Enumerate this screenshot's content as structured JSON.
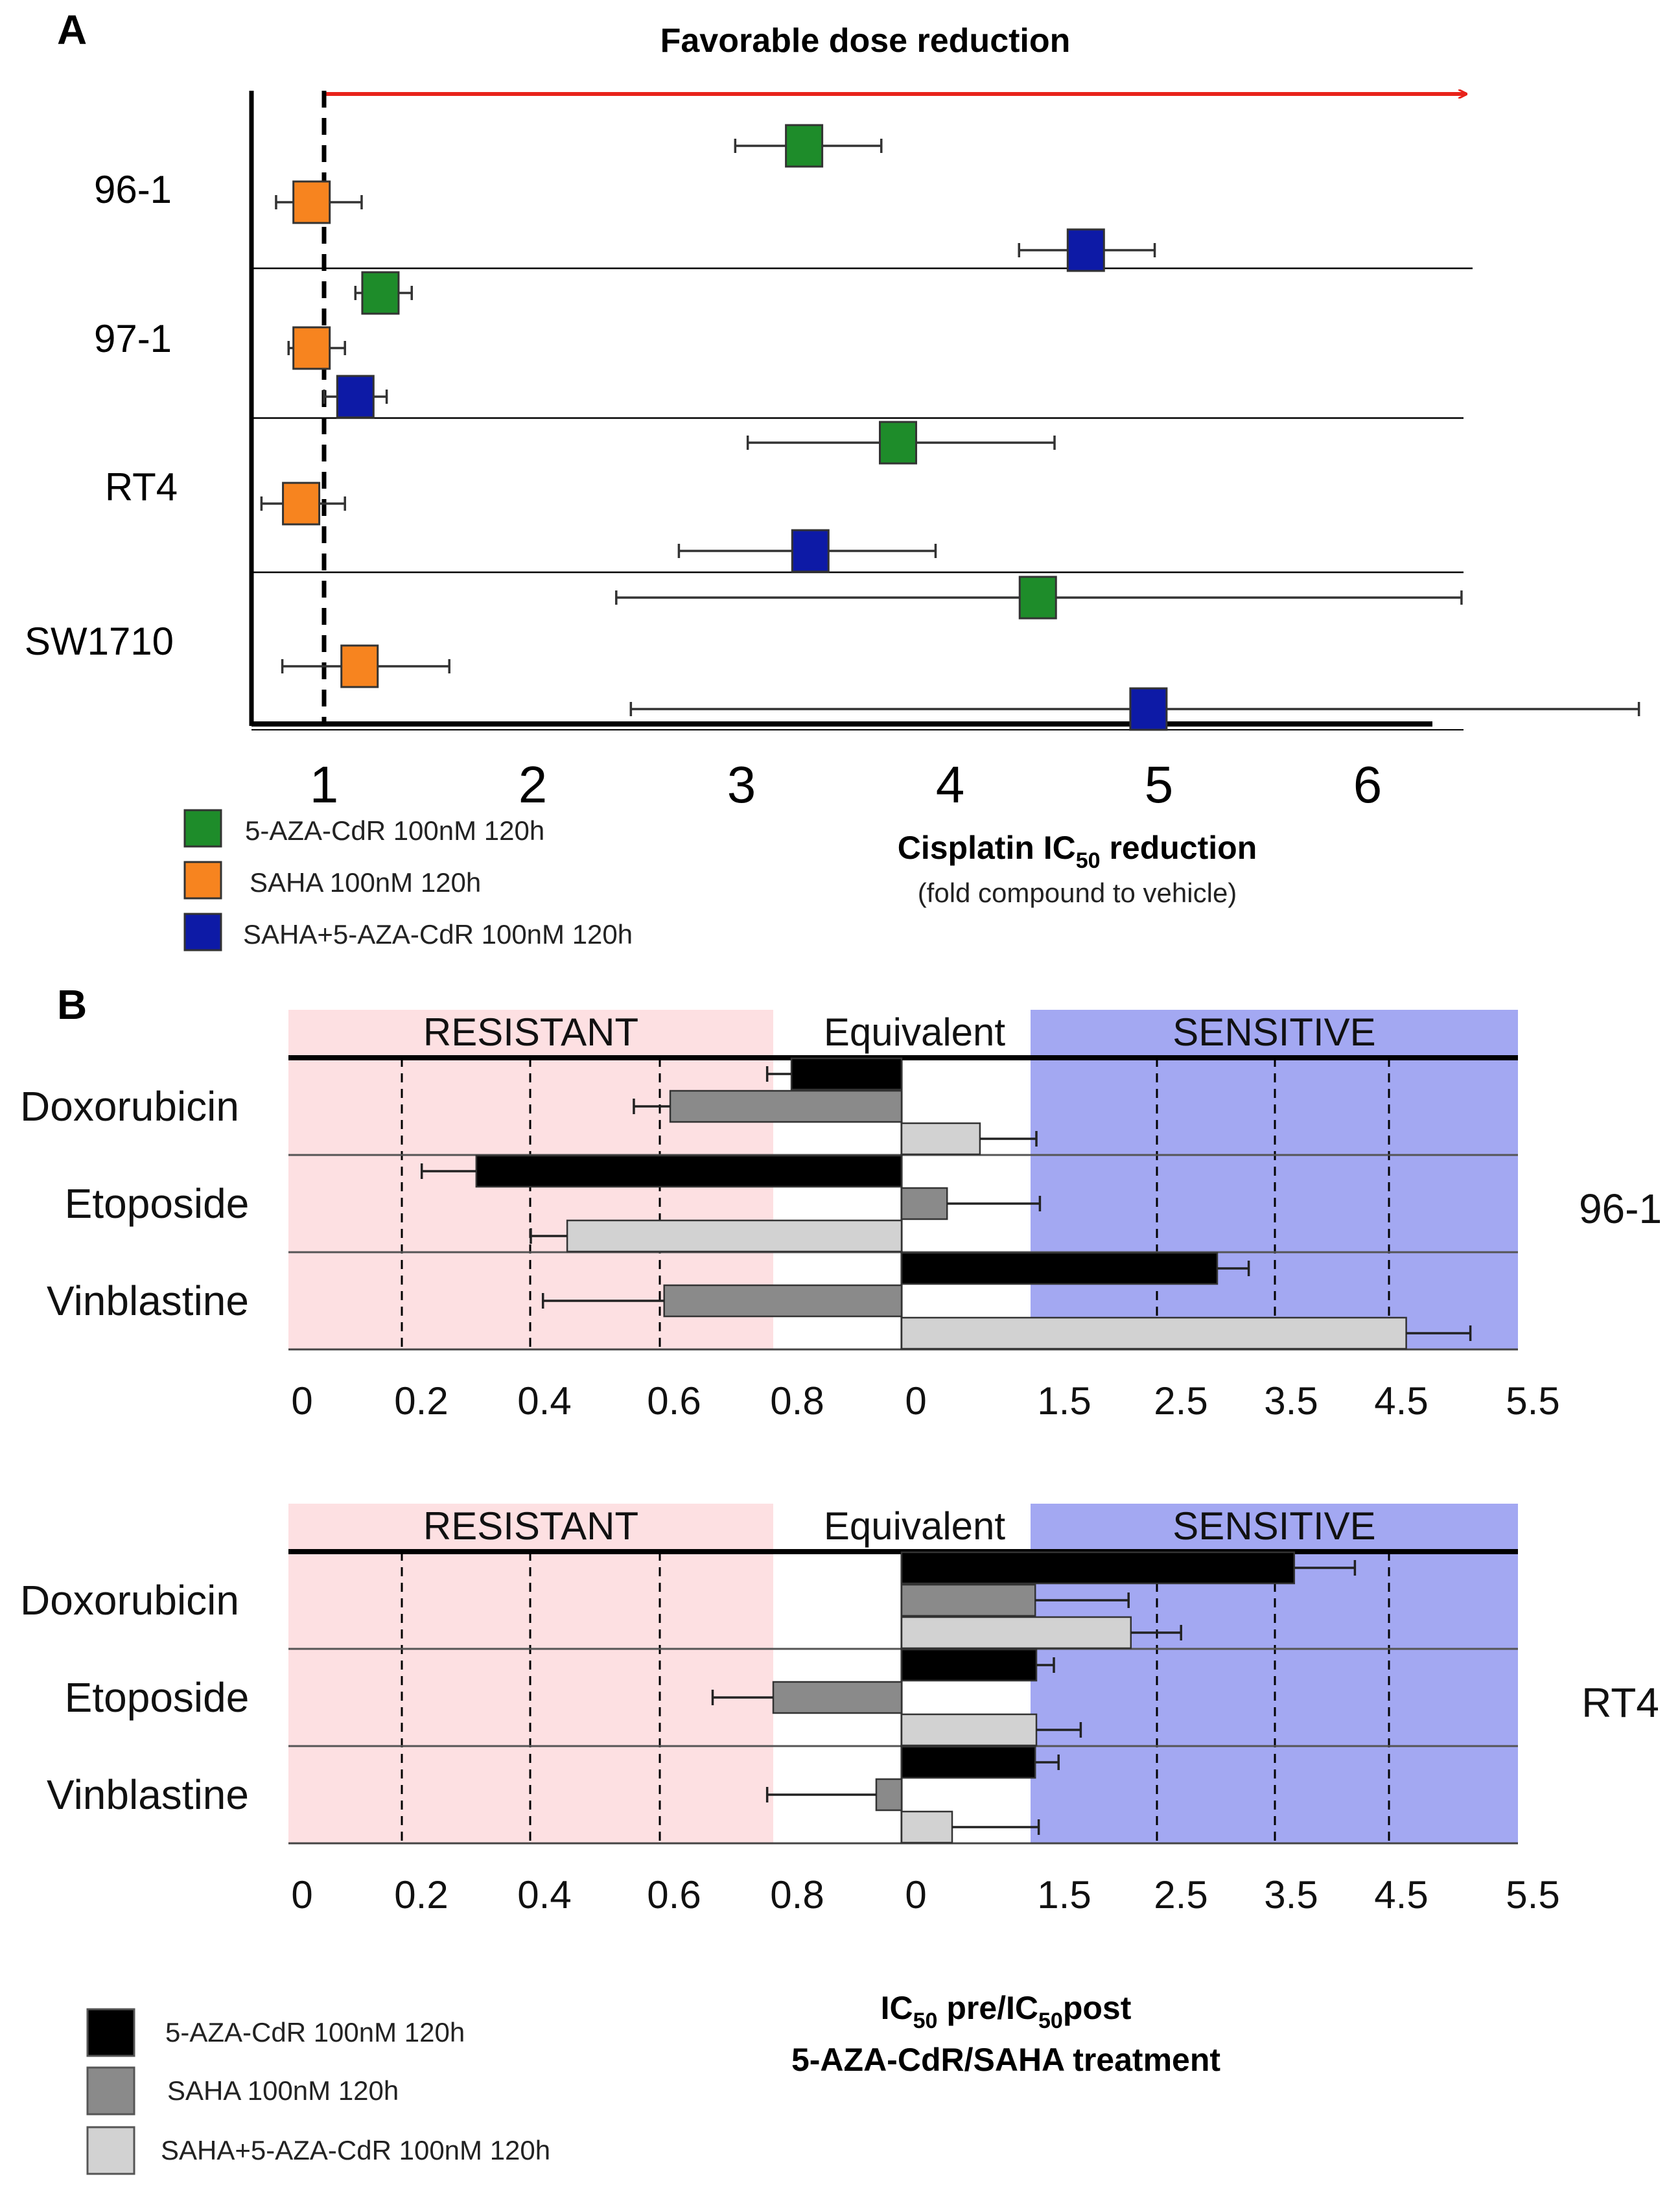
{
  "colors": {
    "green": "#1e8c2a",
    "orange": "#f7841f",
    "blue": "#0d1aa6",
    "black": "#000000",
    "dark_gray": "#8a8a8a",
    "light_gray": "#d2d2d2",
    "resistant_bg": "#fde0e2",
    "sensitive_bg": "#a3a8f2",
    "arrow": "#e8231b"
  },
  "chart_data": [
    {
      "panel": "A",
      "type": "scatter",
      "subtype": "forest-plot",
      "title": "Favorable dose reduction",
      "xlabel": "Cisplatin IC50 reduction",
      "xlabel_sub": "(fold compound to vehicle)",
      "xlim": [
        0.7,
        6.5
      ],
      "xticks": [
        1,
        2,
        3,
        4,
        5,
        6
      ],
      "reference_line": 1,
      "categories": [
        "96-1",
        "97-1",
        "RT4",
        "SW1710"
      ],
      "series": [
        {
          "name": "5-AZA-CdR 100nM 120h",
          "color": "green",
          "values": [
            3.3,
            1.27,
            3.75,
            4.42
          ],
          "ci_low": [
            2.97,
            1.15,
            3.03,
            2.4
          ],
          "ci_high": [
            3.67,
            1.42,
            4.5,
            6.45
          ]
        },
        {
          "name": "SAHA 100nM 120h",
          "color": "orange",
          "values": [
            0.94,
            0.94,
            0.89,
            1.17
          ],
          "ci_low": [
            0.77,
            0.83,
            0.7,
            0.8
          ],
          "ci_high": [
            1.18,
            1.1,
            1.1,
            1.6
          ]
        },
        {
          "name": "SAHA+5-AZA-CdR 100nM 120h",
          "color": "blue",
          "values": [
            4.65,
            1.15,
            3.33,
            4.95
          ],
          "ci_low": [
            4.33,
            1.0,
            2.7,
            2.47
          ],
          "ci_high": [
            4.98,
            1.3,
            3.93,
            7.3
          ]
        }
      ]
    },
    {
      "panel": "B",
      "type": "bar",
      "orientation": "horizontal",
      "cell_line": "96-1",
      "zone_labels": [
        "RESISTANT",
        "Equivalent",
        "SENSITIVE"
      ],
      "left_ticks": [
        "0",
        "0.2",
        "0.4",
        "0.6",
        "0.8"
      ],
      "right_ticks": [
        "0",
        "1.5",
        "2.5",
        "3.5",
        "4.5",
        "5.5"
      ],
      "categories": [
        "Doxorubicin",
        "Etoposide",
        "Vinblastine"
      ],
      "series": [
        {
          "name": "5-AZA-CdR 100nM 120h",
          "color": "black",
          "values": [
            0.83,
            0.31,
            3.1
          ],
          "err": [
            0.04,
            0.09,
            0.27
          ]
        },
        {
          "name": "SAHA 100nM 120h",
          "color": "dark_gray",
          "values": [
            0.63,
            1.18,
            0.62
          ],
          "err": [
            0.06,
            0.4,
            0.2
          ]
        },
        {
          "name": "SAHA+5-AZA-CdR 100nM 120h",
          "color": "light_gray",
          "values": [
            1.31,
            0.46,
            4.72
          ],
          "err": [
            0.24,
            0.06,
            0.55
          ]
        }
      ]
    },
    {
      "panel": "B",
      "type": "bar",
      "orientation": "horizontal",
      "cell_line": "RT4",
      "zone_labels": [
        "RESISTANT",
        "Equivalent",
        "SENSITIVE"
      ],
      "left_ticks": [
        "0",
        "0.2",
        "0.4",
        "0.6",
        "0.8"
      ],
      "right_ticks": [
        "0",
        "1.5",
        "2.5",
        "3.5",
        "4.5",
        "5.5"
      ],
      "categories": [
        "Doxorubicin",
        "Etoposide",
        "Vinblastine"
      ],
      "series": [
        {
          "name": "5-AZA-CdR 100nM 120h",
          "color": "black",
          "values": [
            3.76,
            1.55,
            1.54
          ],
          "err": [
            0.52,
            0.15,
            0.2
          ]
        },
        {
          "name": "SAHA 100nM 120h",
          "color": "dark_gray",
          "values": [
            1.54,
            0.8,
            0.97
          ],
          "err": [
            0.8,
            0.1,
            0.18
          ]
        },
        {
          "name": "SAHA+5-AZA-CdR 100nM 120h",
          "color": "light_gray",
          "values": [
            2.36,
            1.55,
            1.2
          ],
          "err": [
            0.43,
            0.38,
            0.37
          ]
        }
      ]
    }
  ],
  "panelA": {
    "letter": "A",
    "title": "Favorable dose reduction",
    "xlabel_main": "Cisplatin IC",
    "xlabel_sub50": "50",
    "xlabel_tail": " reduction",
    "xlabel2": "(fold compound to vehicle)",
    "legend": [
      "5-AZA-CdR 100nM 120h",
      "SAHA 100nM 120h",
      "SAHA+5-AZA-CdR  100nM 120h"
    ]
  },
  "panelB": {
    "letter": "B",
    "xlabel1_main": "IC",
    "xlabel1_sub": "50",
    "xlabel1_mid": " pre/IC",
    "xlabel1_sub2": "50",
    "xlabel1_tail": "post",
    "xlabel2": "5-AZA-CdR/SAHA treatment",
    "legend": [
      "5-AZA-CdR 100nM 120h",
      "SAHA 100nM 120h",
      "SAHA+5-AZA-CdR  100nM 120h"
    ]
  }
}
